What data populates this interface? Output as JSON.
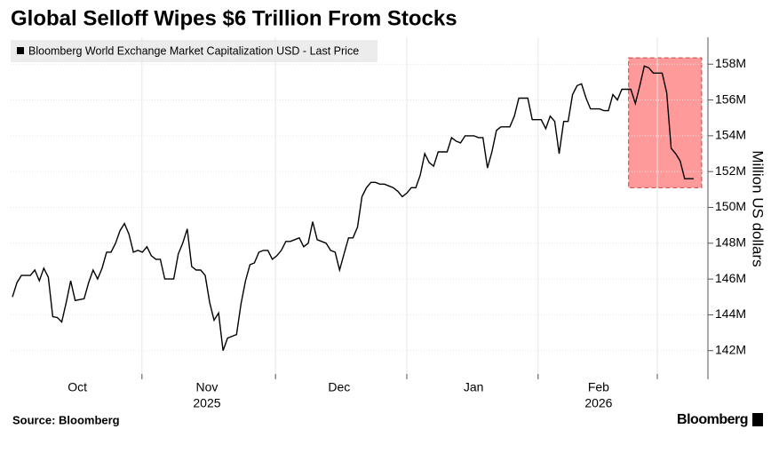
{
  "chart_data": {
    "type": "line",
    "title": "Global Selloff Wipes $6 Trillion From Stocks",
    "y_axis_label": "Million US dollars",
    "source": "Source: Bloomberg",
    "brand": "Bloomberg",
    "categories": [
      null,
      null,
      null,
      null,
      null,
      null,
      null,
      null,
      null,
      null,
      null,
      null,
      null,
      null,
      null,
      null,
      null,
      null,
      null,
      null,
      null,
      null,
      null,
      null,
      null,
      null,
      null,
      null,
      null,
      null,
      null,
      null,
      null,
      null,
      null,
      null,
      null,
      null,
      null,
      null,
      null,
      null,
      null,
      null,
      null,
      null,
      null,
      null,
      null,
      null,
      null,
      null,
      null,
      null,
      null,
      null,
      null,
      null,
      null,
      null,
      null,
      null,
      null,
      null,
      null,
      null,
      null,
      null,
      null,
      null,
      null,
      null,
      null,
      null,
      null,
      null,
      null,
      null,
      null,
      null,
      null,
      null,
      null,
      null,
      null,
      null,
      null,
      null,
      null,
      null,
      null,
      null,
      null,
      null,
      null,
      null,
      null,
      null,
      null,
      null,
      null,
      null,
      null,
      null,
      null,
      null,
      null,
      null,
      null,
      null,
      null,
      null,
      null,
      null,
      null,
      null,
      null,
      null,
      null,
      null,
      null,
      null,
      null,
      null,
      null,
      null,
      null,
      null,
      null,
      null,
      null,
      null,
      null,
      null,
      null,
      null,
      null,
      null,
      null,
      null,
      null,
      null,
      null,
      null,
      null,
      null,
      null,
      null,
      null,
      null,
      null,
      null,
      null
    ],
    "series": [
      {
        "name": "Bloomberg World Exchange Market Capitalization USD - Last Price",
        "color": "#000000",
        "values": [
          145.0,
          145.8,
          146.2,
          146.2,
          146.2,
          146.5,
          145.9,
          146.6,
          146.1,
          143.9,
          143.85,
          143.6,
          144.7,
          145.9,
          144.8,
          144.85,
          144.9,
          145.8,
          146.5,
          146.0,
          146.6,
          147.5,
          147.5,
          148.0,
          148.7,
          149.1,
          148.5,
          147.5,
          147.6,
          147.5,
          147.8,
          147.3,
          147.1,
          147.1,
          146.0,
          146.0,
          146.0,
          147.4,
          148.0,
          148.8,
          146.7,
          146.5,
          146.5,
          146.2,
          144.7,
          143.7,
          144.1,
          142.0,
          142.7,
          142.8,
          142.9,
          144.6,
          145.9,
          146.8,
          146.9,
          147.5,
          147.6,
          147.6,
          147.1,
          147.3,
          147.6,
          148.1,
          148.1,
          148.2,
          148.3,
          147.8,
          148.0,
          149.2,
          148.2,
          148.1,
          148.0,
          147.6,
          147.5,
          146.5,
          147.4,
          148.3,
          148.3,
          148.9,
          150.6,
          151.1,
          151.4,
          151.4,
          151.3,
          151.3,
          151.2,
          151.1,
          150.9,
          150.6,
          150.8,
          151.1,
          151.1,
          151.8,
          153.0,
          152.5,
          152.3,
          153.1,
          153.1,
          153.1,
          153.9,
          153.7,
          153.6,
          154.0,
          154.0,
          154.0,
          153.9,
          153.9,
          152.2,
          153.1,
          154.3,
          154.5,
          154.5,
          154.5,
          155.1,
          156.1,
          156.1,
          156.1,
          154.9,
          154.9,
          154.9,
          154.4,
          155.1,
          154.8,
          153.0,
          154.8,
          154.8,
          156.3,
          156.8,
          156.9,
          156.1,
          155.5,
          155.5,
          155.5,
          155.4,
          155.4,
          156.3,
          156.0,
          156.6,
          156.6,
          156.6,
          155.8,
          156.8,
          157.9,
          157.8,
          157.5,
          157.5,
          157.5,
          156.4,
          153.3,
          153.0,
          152.6,
          151.6,
          151.6,
          151.6
        ]
      }
    ],
    "xlim": [
      -0.4,
      155.2
    ],
    "xticks": [
      28.9,
      58.7,
      88.0,
      117.3,
      143.9
    ],
    "month_labels": [
      {
        "value": 14.5,
        "label": "Oct"
      },
      {
        "value": 43.4,
        "label": "Nov"
      },
      {
        "value": 72.9,
        "label": "Dec"
      },
      {
        "value": 102.9,
        "label": "Jan"
      },
      {
        "value": 130.8,
        "label": "Feb"
      }
    ],
    "year_labels": [
      {
        "value": 43.4,
        "label": "2025"
      },
      {
        "value": 130.8,
        "label": "2026"
      }
    ],
    "ylim": [
      140.4,
      159.5
    ],
    "yticks": [
      {
        "value": 142,
        "label": "142M"
      },
      {
        "value": 144,
        "label": "144M"
      },
      {
        "value": 146,
        "label": "146M"
      },
      {
        "value": 148,
        "label": "148M"
      },
      {
        "value": 150,
        "label": "150M"
      },
      {
        "value": 152,
        "label": "152M"
      },
      {
        "value": 154,
        "label": "154M"
      },
      {
        "value": 156,
        "label": "156M"
      },
      {
        "value": 158,
        "label": "158M"
      }
    ],
    "highlight": {
      "x": [
        137.5,
        153.8
      ],
      "y": [
        151.1,
        158.35
      ],
      "color": "#ff9a9a"
    },
    "grid": true
  }
}
